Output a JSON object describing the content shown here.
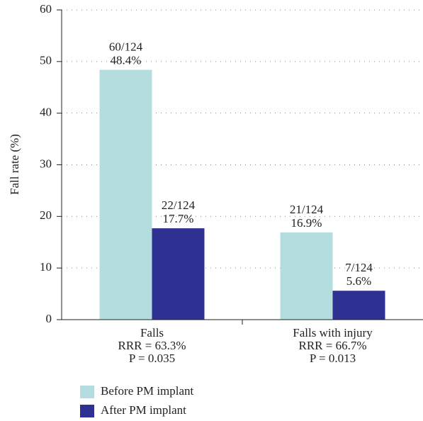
{
  "chart_data": {
    "type": "bar",
    "ylabel": "Fall rate (%)",
    "categories": [
      "Falls",
      "Falls with injury"
    ],
    "category_notes": [
      [
        "RRR = 63.3%",
        "P = 0.035"
      ],
      [
        "RRR = 66.7%",
        "P = 0.013"
      ]
    ],
    "series": [
      {
        "name": "Before PM implant",
        "color": "#b4dde0",
        "values": [
          48.4,
          16.9
        ],
        "value_labels": [
          "48.4%",
          "16.9%"
        ],
        "count_labels": [
          "60/124",
          "21/124"
        ]
      },
      {
        "name": "After PM implant",
        "color": "#2e3192",
        "values": [
          17.7,
          5.6
        ],
        "value_labels": [
          "17.7%",
          "5.6%"
        ],
        "count_labels": [
          "22/124",
          "7/124"
        ]
      }
    ],
    "ylim": [
      0,
      60
    ],
    "yticks": [
      0,
      10,
      20,
      30,
      40,
      50,
      60
    ],
    "grid": true
  }
}
